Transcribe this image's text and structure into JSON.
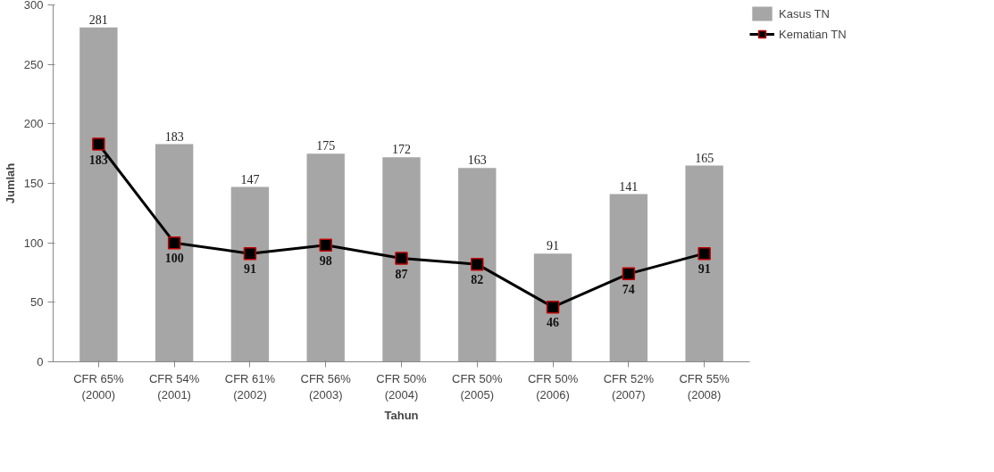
{
  "chart_data": {
    "type": "bar",
    "xlabel": "Tahun",
    "ylabel": "Jumlah",
    "categories": [
      "CFR 65%\n(2000)",
      "CFR 54%\n(2001)",
      "CFR 61%\n(2002)",
      "CFR 56%\n(2003)",
      "CFR 50%\n(2004)",
      "CFR 50%\n(2005)",
      "CFR 50%\n(2006)",
      "CFR 52%\n(2007)",
      "CFR 55%\n(2008)"
    ],
    "series": [
      {
        "name": "Kasus TN",
        "color": "#a6a6a6",
        "values": [
          281,
          183,
          147,
          175,
          172,
          163,
          91,
          141,
          165
        ]
      },
      {
        "name": "Kematian TN",
        "type": "line",
        "color": "#000000",
        "marker": "square",
        "line_style": "solid",
        "values": [
          183,
          100,
          91,
          98,
          87,
          82,
          46,
          74,
          91
        ]
      }
    ],
    "ylim": [
      0,
      300
    ],
    "yticks": [
      0,
      50,
      100,
      150,
      200,
      250,
      300
    ],
    "grid": false,
    "legend": "right",
    "data_labels": true
  }
}
